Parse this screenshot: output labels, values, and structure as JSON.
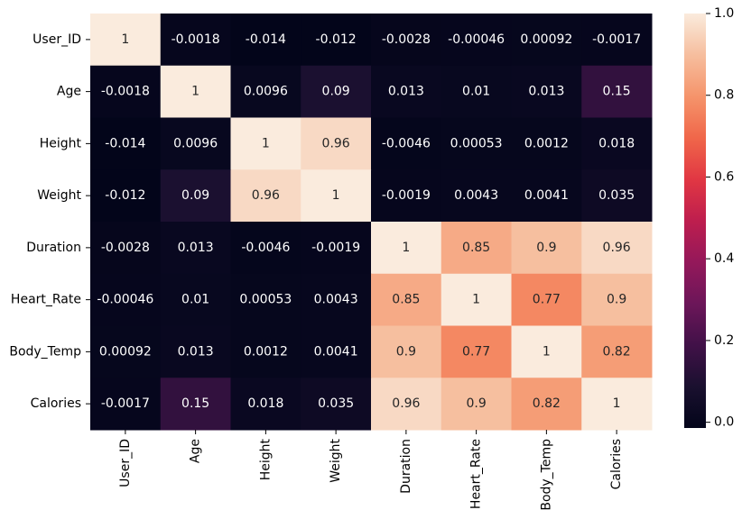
{
  "chart_data": {
    "type": "heatmap",
    "title": "",
    "xlabel": "",
    "ylabel": "",
    "rows": [
      "User_ID",
      "Age",
      "Height",
      "Weight",
      "Duration",
      "Heart_Rate",
      "Body_Temp",
      "Calories"
    ],
    "cols": [
      "User_ID",
      "Age",
      "Height",
      "Weight",
      "Duration",
      "Heart_Rate",
      "Body_Temp",
      "Calories"
    ],
    "values": [
      [
        1,
        -0.0018,
        -0.014,
        -0.012,
        -0.0028,
        -0.00046,
        0.00092,
        -0.0017
      ],
      [
        -0.0018,
        1,
        0.0096,
        0.09,
        0.013,
        0.01,
        0.013,
        0.15
      ],
      [
        -0.014,
        0.0096,
        1,
        0.96,
        -0.0046,
        0.00053,
        0.0012,
        0.018
      ],
      [
        -0.012,
        0.09,
        0.96,
        1,
        -0.0019,
        0.0043,
        0.0041,
        0.035
      ],
      [
        -0.0028,
        0.013,
        -0.0046,
        -0.0019,
        1,
        0.85,
        0.9,
        0.96
      ],
      [
        -0.00046,
        0.01,
        0.00053,
        0.0043,
        0.85,
        1,
        0.77,
        0.9
      ],
      [
        0.00092,
        0.013,
        0.0012,
        0.0041,
        0.9,
        0.77,
        1,
        0.82
      ],
      [
        -0.0017,
        0.15,
        0.018,
        0.035,
        0.96,
        0.9,
        0.82,
        1
      ]
    ],
    "labels": [
      [
        "1",
        "-0.0018",
        "-0.014",
        "-0.012",
        "-0.0028",
        "-0.00046",
        "0.00092",
        "-0.0017"
      ],
      [
        "-0.0018",
        "1",
        "0.0096",
        "0.09",
        "0.013",
        "0.01",
        "0.013",
        "0.15"
      ],
      [
        "-0.014",
        "0.0096",
        "1",
        "0.96",
        "-0.0046",
        "0.00053",
        "0.0012",
        "0.018"
      ],
      [
        "-0.012",
        "0.09",
        "0.96",
        "1",
        "-0.0019",
        "0.0043",
        "0.0041",
        "0.035"
      ],
      [
        "-0.0028",
        "0.013",
        "-0.0046",
        "-0.0019",
        "1",
        "0.85",
        "0.9",
        "0.96"
      ],
      [
        "-0.00046",
        "0.01",
        "0.00053",
        "0.0043",
        "0.85",
        "1",
        "0.77",
        "0.9"
      ],
      [
        "0.00092",
        "0.013",
        "0.0012",
        "0.0041",
        "0.9",
        "0.77",
        "1",
        "0.82"
      ],
      [
        "-0.0017",
        "0.15",
        "0.018",
        "0.035",
        "0.96",
        "0.9",
        "0.82",
        "1"
      ]
    ],
    "colorbar": {
      "colormap": "rocket",
      "range": [
        -0.014,
        1
      ],
      "ticks": [
        "0.0",
        "0.2",
        "0.4",
        "0.6",
        "0.8",
        "1.0"
      ],
      "tick_values": [
        0,
        0.2,
        0.4,
        0.6,
        0.8,
        1.0
      ]
    },
    "grid": false,
    "legend": "colorbar-right"
  }
}
